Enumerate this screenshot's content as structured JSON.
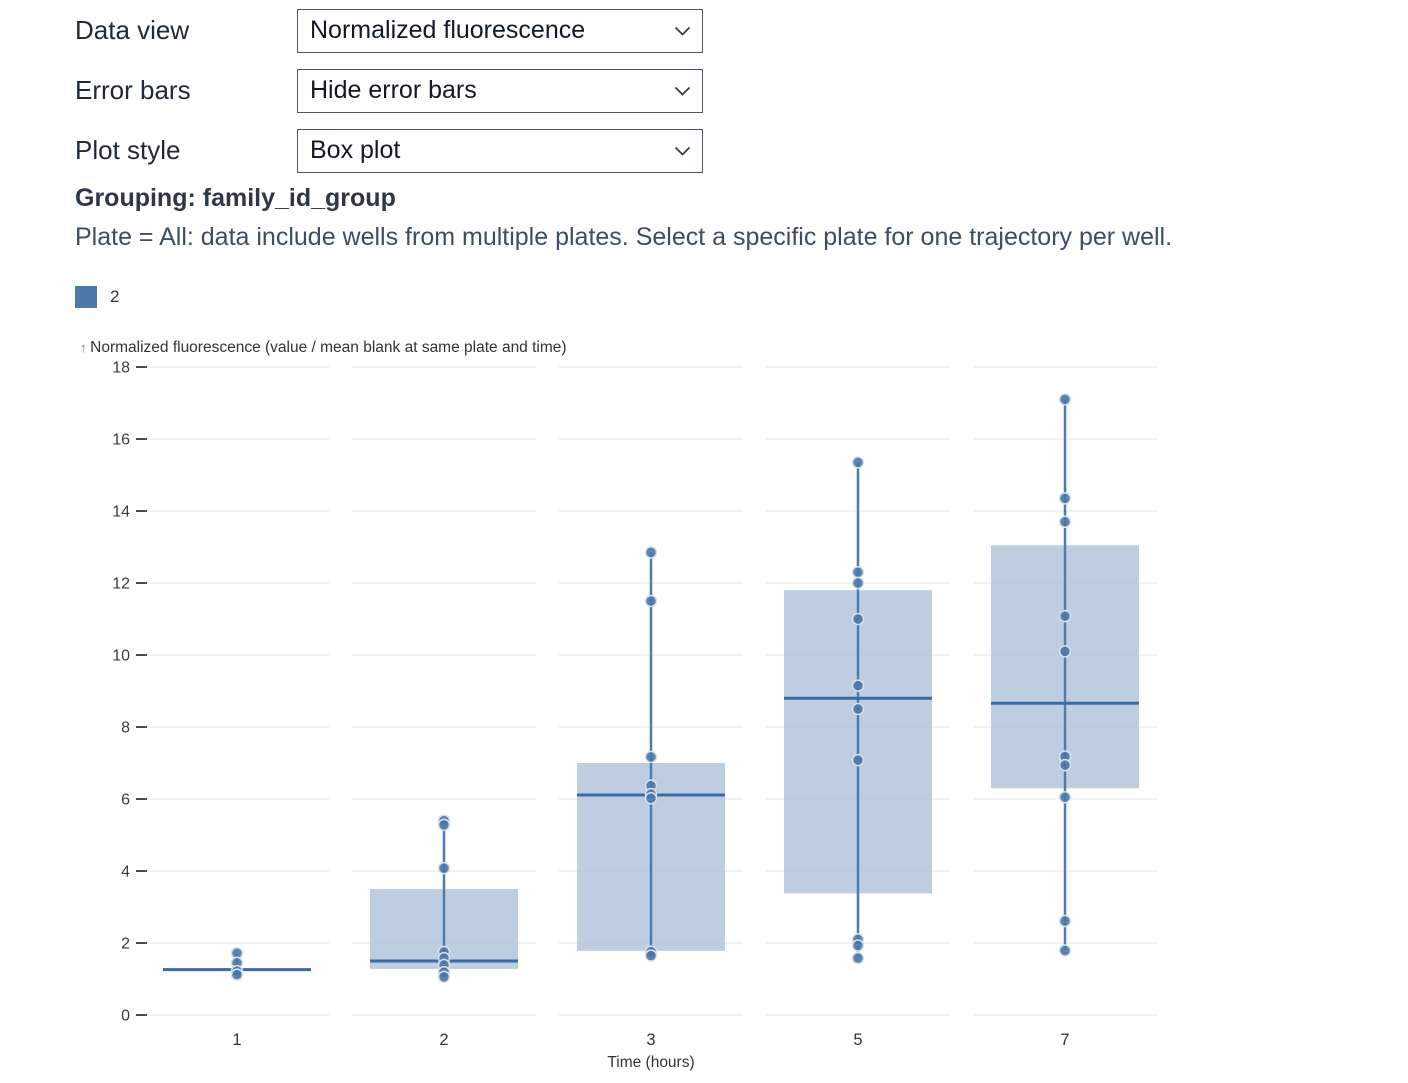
{
  "controls": [
    {
      "label": "Data view",
      "value": "Normalized fluorescence"
    },
    {
      "label": "Error bars",
      "value": "Hide error bars"
    },
    {
      "label": "Plot style",
      "value": "Box plot"
    }
  ],
  "grouping_heading": "Grouping: family_id_group",
  "note": "Plate = All: data include wells from multiple plates. Select a specific plate for one trajectory per well.",
  "legend": {
    "label": "2",
    "color": "#4d7aa8"
  },
  "chart_data": {
    "type": "boxplot",
    "y_axis_arrow": "↑",
    "ylabel": "Normalized fluorescence (value / mean blank at same plate and time)",
    "xlabel": "Time (hours)",
    "categories": [
      "1",
      "2",
      "3",
      "5",
      "7"
    ],
    "ylim": [
      0,
      18
    ],
    "yticks": [
      0,
      2,
      4,
      6,
      8,
      10,
      12,
      14,
      16,
      18
    ],
    "grid": "horizontal, segmented per x band",
    "legend_position": "top-left",
    "groups": [
      {
        "category": "1",
        "q1": 1.22,
        "median": 1.26,
        "q3": 1.3,
        "whisker_low": 1.12,
        "whisker_high": 1.72,
        "points": [
          1.72,
          1.45,
          1.22,
          1.12
        ]
      },
      {
        "category": "2",
        "q1": 1.28,
        "median": 1.5,
        "q3": 3.5,
        "whisker_low": 1.06,
        "whisker_high": 5.4,
        "points": [
          5.4,
          5.28,
          4.08,
          1.75,
          1.58,
          1.39,
          1.19,
          1.06
        ]
      },
      {
        "category": "3",
        "q1": 1.78,
        "median": 6.11,
        "q3": 7.0,
        "whisker_low": 1.65,
        "whisker_high": 12.85,
        "points": [
          12.85,
          11.5,
          7.17,
          6.37,
          6.14,
          6.02,
          1.76,
          1.65
        ]
      },
      {
        "category": "5",
        "q1": 3.38,
        "median": 8.8,
        "q3": 11.8,
        "whisker_low": 1.58,
        "whisker_high": 15.35,
        "points": [
          15.35,
          12.3,
          12.0,
          11.0,
          9.15,
          8.5,
          7.08,
          2.1,
          1.93,
          1.58
        ]
      },
      {
        "category": "7",
        "q1": 6.3,
        "median": 8.66,
        "q3": 13.05,
        "whisker_low": 1.79,
        "whisker_high": 17.1,
        "points": [
          17.1,
          14.35,
          13.7,
          11.08,
          10.1,
          7.18,
          6.94,
          6.05,
          2.61,
          1.79
        ]
      }
    ],
    "colors": {
      "box_fill": "#aec2d8",
      "median_line": "#3a6ba5",
      "whisker_line": "#4d7cae",
      "point_fill": "#4a77a9",
      "point_stroke": "#d7e2ee",
      "grid_line": "#e6e6e6",
      "tick_mark": "#4a4a4a",
      "axis_text": "#333333"
    }
  }
}
